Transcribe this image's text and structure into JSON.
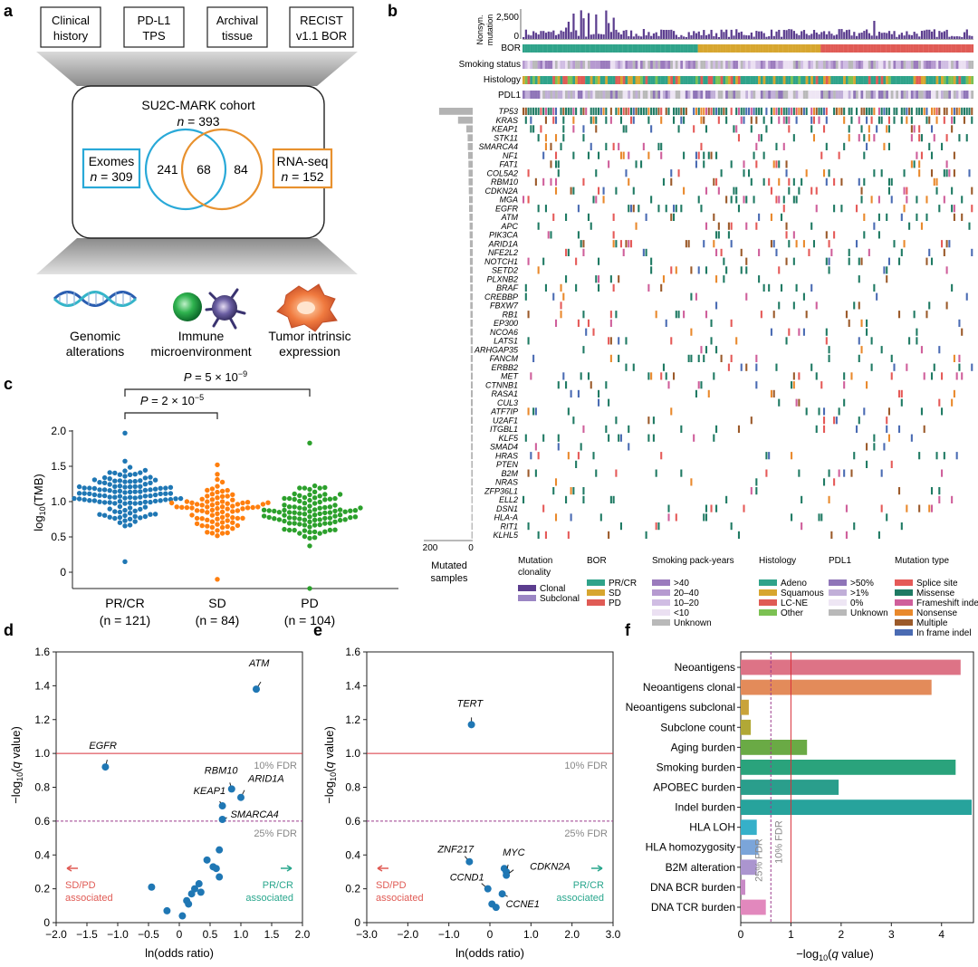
{
  "panel_labels": [
    "a",
    "b",
    "c",
    "d",
    "e",
    "f"
  ],
  "panel_a": {
    "boxes": [
      [
        "Clinical",
        "history"
      ],
      [
        "PD-L1",
        "TPS"
      ],
      [
        "Archival",
        "tissue"
      ],
      [
        "RECIST",
        "v1.1 BOR"
      ]
    ],
    "cohort_title": "SU2C-MARK cohort",
    "cohort_n_label": "n",
    "cohort_n_value": " = 393",
    "exomes_label": "Exomes",
    "exomes_n_value": " = 309",
    "rnaseq_label": "RNA-seq",
    "rnaseq_n_value": " = 152",
    "venn_left": "241",
    "venn_overlap": "68",
    "venn_right": "84",
    "icon_labels": [
      [
        "Genomic",
        "alterations"
      ],
      [
        "Immune",
        "microenvironment"
      ],
      [
        "Tumor intrinsic",
        "expression"
      ]
    ],
    "colors": {
      "exomes": "#29a9d8",
      "rnaseq": "#e8912e"
    }
  },
  "panel_b": {
    "top_axis_label": [
      "Nonsyn.",
      "mutation"
    ],
    "top_ticks": [
      "2,500",
      "0"
    ],
    "tracks": [
      "BOR",
      "Smoking status",
      "Histology",
      "PDL1"
    ],
    "genes": [
      "TP53",
      "KRAS",
      "KEAP1",
      "STK11",
      "SMARCA4",
      "NF1",
      "FAT1",
      "COL5A2",
      "RBM10",
      "CDKN2A",
      "MGA",
      "EGFR",
      "ATM",
      "APC",
      "PIK3CA",
      "ARID1A",
      "NFE2L2",
      "NOTCH1",
      "SETD2",
      "PLXNB2",
      "BRAF",
      "CREBBP",
      "FBXW7",
      "RB1",
      "EP300",
      "NCOA6",
      "LATS1",
      "ARHGAP35",
      "FANCM",
      "ERBB2",
      "MET",
      "CTNNB1",
      "RASA1",
      "CUL3",
      "ATF7IP",
      "U2AF1",
      "ITGBL1",
      "KLF5",
      "SMAD4",
      "HRAS",
      "PTEN",
      "B2M",
      "NRAS",
      "ZFP36L1",
      "ELL2",
      "DSN1",
      "HLA-A",
      "RIT1",
      "KLHL5"
    ],
    "mutated_counts": [
      165,
      72,
      31,
      25,
      24,
      22,
      21,
      20,
      20,
      19,
      18,
      18,
      16,
      15,
      15,
      14,
      14,
      14,
      13,
      13,
      12,
      12,
      12,
      11,
      11,
      11,
      10,
      10,
      10,
      10,
      9,
      9,
      9,
      9,
      9,
      9,
      8,
      8,
      8,
      8,
      7,
      7,
      7,
      7,
      6,
      6,
      6,
      6,
      6
    ],
    "bar_axis_ticks": [
      "200",
      "0"
    ],
    "bar_axis_label": [
      "Mutated",
      "samples"
    ],
    "legends": [
      {
        "title": [
          "Mutation",
          "clonality"
        ],
        "items": [
          [
            "Clonal",
            "#5b3d8e"
          ],
          [
            "Subclonal",
            "#9b86c4"
          ]
        ]
      },
      {
        "title": [
          "BOR"
        ],
        "items": [
          [
            "PR/CR",
            "#2fa38a"
          ],
          [
            "SD",
            "#d7a62f"
          ],
          [
            "PD",
            "#e05b55"
          ]
        ]
      },
      {
        "title": [
          "Smoking pack-years"
        ],
        "items": [
          [
            ">40",
            "#9b7bbd"
          ],
          [
            "20–40",
            "#b69ad0"
          ],
          [
            "10–20",
            "#d0bde3"
          ],
          [
            "<10",
            "#ebe0f2"
          ],
          [
            "Unknown",
            "#b9b9b9"
          ]
        ]
      },
      {
        "title": [
          "Histology"
        ],
        "items": [
          [
            "Adeno",
            "#2fa38a"
          ],
          [
            "Squamous",
            "#d7a62f"
          ],
          [
            "LC-NE",
            "#e05b55"
          ],
          [
            "Other",
            "#7cc153"
          ]
        ]
      },
      {
        "title": [
          "PDL1"
        ],
        "items": [
          [
            ">50%",
            "#8f75b8"
          ],
          [
            ">1%",
            "#c1afd8"
          ],
          [
            "0%",
            "#eee6f4"
          ],
          [
            "Unknown",
            "#b9b9b9"
          ]
        ]
      },
      {
        "title": [
          "Mutation type"
        ],
        "items": [
          [
            "Splice site",
            "#e55a58"
          ],
          [
            "Missense",
            "#1f7a63"
          ],
          [
            "Frameshift indel",
            "#cf5f9b"
          ],
          [
            "Nonsense",
            "#e9892c"
          ],
          [
            "Multiple",
            "#9b5a2a"
          ],
          [
            "In frame indel",
            "#4a6bb3"
          ]
        ]
      }
    ]
  },
  "panel_c": {
    "ylabel": "log10(TMB)",
    "yticks": [
      "0",
      "0.5",
      "1.0",
      "1.5",
      "2.0"
    ],
    "groups": [
      {
        "label": "PR/CR",
        "n": "(n = 121)",
        "color": "#1f77b4"
      },
      {
        "label": "SD",
        "n": "(n = 84)",
        "color": "#ff7f0e"
      },
      {
        "label": "PD",
        "n": "(n = 104)",
        "color": "#2ca02c"
      }
    ],
    "p_inner": "P = 2 × 10^−5",
    "p_outer": "P = 5 × 10^−9"
  },
  "chart_data": [
    {
      "type": "scatter",
      "panel": "d",
      "xlabel": "ln(odds ratio)",
      "ylabel": "−log10(q value)",
      "xlim": [
        -2.0,
        2.0
      ],
      "ylim": [
        0,
        1.6
      ],
      "xticks": [
        "−2.0",
        "−1.5",
        "−1.0",
        "−0.5",
        "0",
        "0.5",
        "1.0",
        "1.5",
        "2.0"
      ],
      "yticks": [
        "0",
        "0.2",
        "0.4",
        "0.6",
        "0.8",
        "1.0",
        "1.2",
        "1.4",
        "1.6"
      ],
      "thresholds": [
        {
          "y": 1.0,
          "label": "10% FDR"
        },
        {
          "y": 0.6,
          "label": "25% FDR"
        }
      ],
      "left_annotation": [
        "SD/PD",
        "associated"
      ],
      "right_annotation": [
        "PR/CR",
        "associated"
      ],
      "labeled_points": [
        {
          "gene": "ATM",
          "x": 1.25,
          "y": 1.38
        },
        {
          "gene": "EGFR",
          "x": -1.2,
          "y": 0.92
        },
        {
          "gene": "RBM10",
          "x": 0.85,
          "y": 0.79
        },
        {
          "gene": "ARID1A",
          "x": 1.0,
          "y": 0.74
        },
        {
          "gene": "KEAP1",
          "x": 0.7,
          "y": 0.69
        },
        {
          "gene": "SMARCA4",
          "x": 0.7,
          "y": 0.61
        }
      ],
      "points": [
        {
          "x": 0.65,
          "y": 0.43
        },
        {
          "x": 0.45,
          "y": 0.37
        },
        {
          "x": 0.55,
          "y": 0.33
        },
        {
          "x": 0.6,
          "y": 0.32
        },
        {
          "x": 0.65,
          "y": 0.27
        },
        {
          "x": 0.32,
          "y": 0.23
        },
        {
          "x": 0.25,
          "y": 0.2
        },
        {
          "x": 0.2,
          "y": 0.17
        },
        {
          "x": 0.35,
          "y": 0.18
        },
        {
          "x": 0.12,
          "y": 0.13
        },
        {
          "x": 0.15,
          "y": 0.11
        },
        {
          "x": -0.45,
          "y": 0.21
        },
        {
          "x": -0.2,
          "y": 0.07
        },
        {
          "x": 0.05,
          "y": 0.04
        }
      ]
    },
    {
      "type": "scatter",
      "panel": "e",
      "xlabel": "ln(odds ratio)",
      "ylabel": "−log10(q value)",
      "xlim": [
        -3.0,
        3.0
      ],
      "ylim": [
        0,
        1.6
      ],
      "xticks": [
        "−3.0",
        "−2.0",
        "−1.0",
        "0",
        "1.0",
        "2.0",
        "3.0"
      ],
      "yticks": [
        "0",
        "0.2",
        "0.4",
        "0.6",
        "0.8",
        "1.0",
        "1.2",
        "1.4",
        "1.6"
      ],
      "thresholds": [
        {
          "y": 1.0,
          "label": "10% FDR"
        },
        {
          "y": 0.6,
          "label": "25% FDR"
        }
      ],
      "left_annotation": [
        "SD/PD",
        "associated"
      ],
      "right_annotation": [
        "PR/CR",
        "associated"
      ],
      "labeled_points": [
        {
          "gene": "TERT",
          "x": -0.45,
          "y": 1.17
        },
        {
          "gene": "ZNF217",
          "x": -0.5,
          "y": 0.36
        },
        {
          "gene": "MYC",
          "x": 0.4,
          "y": 0.3
        },
        {
          "gene": "CDKN2A",
          "x": 0.4,
          "y": 0.28
        },
        {
          "gene": "CCND1",
          "x": -0.05,
          "y": 0.2
        },
        {
          "gene": "CCNE1",
          "x": 0.3,
          "y": 0.17
        }
      ],
      "points": [
        {
          "x": 0.05,
          "y": 0.11
        },
        {
          "x": 0.15,
          "y": 0.09
        },
        {
          "x": 0.35,
          "y": 0.32
        }
      ]
    },
    {
      "type": "bar",
      "panel": "f",
      "orientation": "horizontal",
      "xlabel": "−log10(q value)",
      "xlim": [
        0,
        4.6
      ],
      "xticks": [
        "0",
        "1",
        "2",
        "3",
        "4"
      ],
      "thresholds": [
        {
          "x": 0.6,
          "label": "25% FDR"
        },
        {
          "x": 1.0,
          "label": "10% FDR"
        }
      ],
      "categories": [
        "Neoantigens",
        "Neoantigens clonal",
        "Neoantigens subclonal",
        "Subclone count",
        "Aging burden",
        "Smoking burden",
        "APOBEC burden",
        "Indel burden",
        "HLA LOH",
        "HLA homozygosity",
        "B2M alteration",
        "DNA BCR burden",
        "DNA TCR burden"
      ],
      "values": [
        4.38,
        3.8,
        0.16,
        0.2,
        1.32,
        4.28,
        1.95,
        4.6,
        0.32,
        0.35,
        0.32,
        0.09,
        0.5
      ],
      "colors": [
        "#dd7386",
        "#e38b5a",
        "#c9a33a",
        "#b1a836",
        "#6aaa45",
        "#2aa37c",
        "#2a9e8c",
        "#27a39c",
        "#36b0c9",
        "#7ba5d9",
        "#ab95cf",
        "#c88ac6",
        "#e288bd"
      ]
    }
  ]
}
